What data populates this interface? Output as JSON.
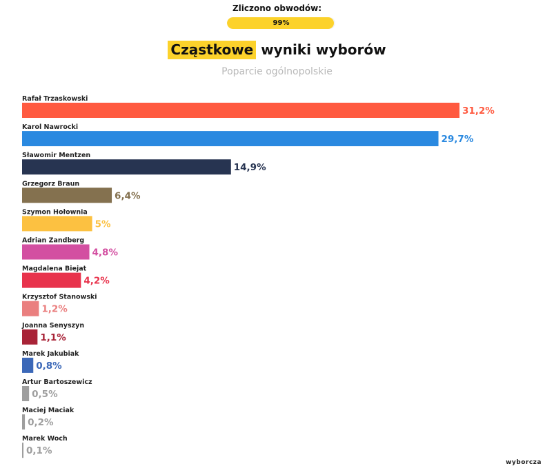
{
  "header": {
    "counted_label": "Zliczono obwodów:",
    "counted_value": "99%",
    "counted_fraction": 0.99,
    "title_highlight": "Cząstkowe",
    "title_rest": " wyniki wyborów",
    "subtitle": "Poparcie ogólnopolskie",
    "brand": "wyborcza",
    "accent_color": "#fcd22b"
  },
  "chart_data": {
    "type": "bar",
    "orientation": "horizontal",
    "title": "Cząstkowe wyniki wyborów",
    "subtitle": "Poparcie ogólnopolskie",
    "xlim": [
      0,
      31.2
    ],
    "grid": false,
    "legend": "none",
    "categories": [
      "Rafał Trzaskowski",
      "Karol Nawrocki",
      "Sławomir Mentzen",
      "Grzegorz Braun",
      "Szymon Hołownia",
      "Adrian Zandberg",
      "Magdalena Biejat",
      "Krzysztof Stanowski",
      "Joanna Senyszyn",
      "Marek Jakubiak",
      "Artur Bartoszewicz",
      "Maciej Maciak",
      "Marek Woch"
    ],
    "values": [
      31.2,
      29.7,
      14.9,
      6.4,
      5,
      4.8,
      4.2,
      1.2,
      1.1,
      0.8,
      0.5,
      0.2,
      0.1
    ],
    "value_labels": [
      "31,2%",
      "29,7%",
      "14,9%",
      "6,4%",
      "5%",
      "4,8%",
      "4,2%",
      "1,2%",
      "1,1%",
      "0,8%",
      "0,5%",
      "0,2%",
      "0,1%"
    ],
    "bar_colors": [
      "#ff5a40",
      "#2a89e0",
      "#273451",
      "#84714f",
      "#fcc141",
      "#d34fa1",
      "#e8334c",
      "#ea7f7f",
      "#a82337",
      "#3b68b8",
      "#9e9e9e",
      "#9e9e9e",
      "#9e9e9e"
    ],
    "label_colors": [
      "#ff5a40",
      "#2a89e0",
      "#273451",
      "#84714f",
      "#fcc141",
      "#d34fa1",
      "#e8334c",
      "#ea7f7f",
      "#a82337",
      "#3b68b8",
      "#9e9e9e",
      "#9e9e9e",
      "#9e9e9e"
    ]
  }
}
